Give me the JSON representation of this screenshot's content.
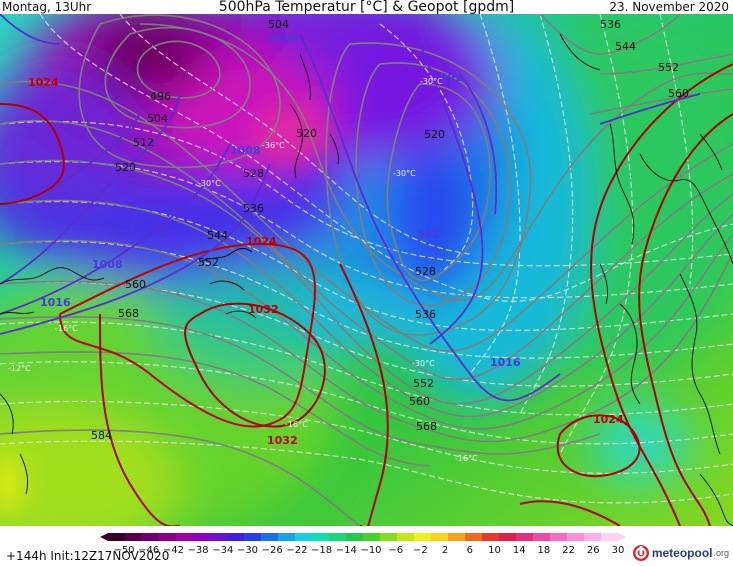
{
  "header": {
    "valid_time": "Montag, 13Uhr",
    "title": "500hPa Temperatur [°C] & Geopot [gpdm]",
    "date": "23. November 2020"
  },
  "footer": {
    "run_info": "+144h Init:12Z17NOV2020",
    "brand": "meteopool",
    "brand_suffix": ".org"
  },
  "legend": {
    "ticks": [
      -50,
      -46,
      -42,
      -38,
      -34,
      -30,
      -26,
      -22,
      -18,
      -14,
      -10,
      -6,
      -2,
      2,
      6,
      10,
      14,
      18,
      22,
      26,
      30
    ],
    "colors": [
      "#3a0028",
      "#55004a",
      "#700070",
      "#8a008a",
      "#a300a6",
      "#8d00c6",
      "#6a10d8",
      "#3f1ee8",
      "#2a3ef0",
      "#1d6ee8",
      "#16a4e8",
      "#17cfe0",
      "#13dcb0",
      "#1ad67a",
      "#22c84a",
      "#45d02a",
      "#86dc20",
      "#c4e61a",
      "#eef018",
      "#f6d41a",
      "#f6a41c",
      "#f26a20",
      "#e83a28",
      "#e0204c",
      "#e2307a",
      "#ee4aa6",
      "#f46cc4",
      "#f890d8",
      "#fcb0e6",
      "#fed0f2"
    ]
  },
  "colors": {
    "geopotential_contours": "#111111",
    "pressure_isobars": "#b00000",
    "pressure_isobars_low": "#5a2cd0",
    "temperature_isotherms": "#e6e6e6"
  },
  "map_labels": {
    "geopotential": [
      {
        "text": "504"
      },
      {
        "text": "496"
      },
      {
        "text": "504"
      },
      {
        "text": "512"
      },
      {
        "text": "520"
      },
      {
        "text": "528"
      },
      {
        "text": "536"
      },
      {
        "text": "544"
      },
      {
        "text": "552"
      },
      {
        "text": "560"
      },
      {
        "text": "568"
      },
      {
        "text": "584"
      },
      {
        "text": "520"
      },
      {
        "text": "520"
      },
      {
        "text": "528"
      },
      {
        "text": "536"
      },
      {
        "text": "552"
      },
      {
        "text": "560"
      },
      {
        "text": "568"
      },
      {
        "text": "536"
      },
      {
        "text": "544"
      },
      {
        "text": "552"
      },
      {
        "text": "560"
      }
    ],
    "pressure": [
      {
        "text": "1024"
      },
      {
        "text": "1024"
      },
      {
        "text": "1032"
      },
      {
        "text": "1032"
      },
      {
        "text": "1024"
      },
      {
        "text": "1008"
      },
      {
        "text": "1016"
      },
      {
        "text": "1016"
      },
      {
        "text": "992"
      },
      {
        "text": "992"
      },
      {
        "text": "1008"
      },
      {
        "text": "1000"
      }
    ],
    "temperature": [
      {
        "text": "-36°C"
      },
      {
        "text": "-30°C"
      },
      {
        "text": "-30°C"
      },
      {
        "text": "-30°C"
      },
      {
        "text": "-16°C"
      },
      {
        "text": "-12°C"
      },
      {
        "text": "-16°C"
      },
      {
        "text": "-16°C"
      },
      {
        "text": "-30°C"
      }
    ]
  }
}
